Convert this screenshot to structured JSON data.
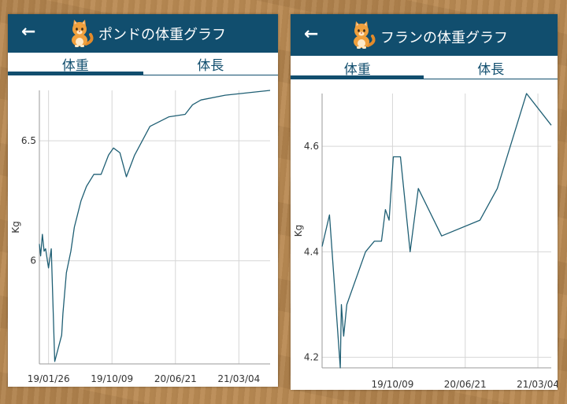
{
  "back_icon": "arrow-left-icon",
  "avatar_icon": "cat-icon",
  "accent_color": "#114e6e",
  "line_color": "#1f5f74",
  "panels": [
    {
      "header": {
        "back_glyph": "←",
        "title": "ポンドの体重グラフ"
      },
      "tabs": [
        {
          "label": "体重",
          "active": true
        },
        {
          "label": "体長",
          "active": false
        }
      ]
    },
    {
      "header": {
        "back_glyph": "←",
        "title": "フランの体重グラフ"
      },
      "tabs": [
        {
          "label": "体重",
          "active": true
        },
        {
          "label": "体長",
          "active": false
        }
      ]
    }
  ],
  "chart_data": [
    {
      "type": "line",
      "ylabel": "Kg",
      "ylim": [
        5.57,
        6.71
      ],
      "yticks": [
        6,
        6.5
      ],
      "xlim": [
        "2018-12-20",
        "2021-07-08"
      ],
      "x_ticks": [
        {
          "date": "2019-01-26",
          "label": "19/01/26"
        },
        {
          "date": "2019-10-09",
          "label": "19/10/09"
        },
        {
          "date": "2020-06-21",
          "label": "20/06/21"
        },
        {
          "date": "2021-03-04",
          "label": "21/03/04"
        }
      ],
      "grid": true,
      "series": [
        {
          "x": [
            "2018-12-20",
            "2018-12-25",
            "2019-01-01",
            "2019-01-08",
            "2019-01-14",
            "2019-01-26",
            "2019-02-06",
            "2019-02-20",
            "2019-03-20",
            "2019-03-25",
            "2019-04-08",
            "2019-04-26",
            "2019-05-10",
            "2019-05-20",
            "2019-06-06",
            "2019-06-28",
            "2019-07-28",
            "2019-08-26",
            "2019-09-25",
            "2019-10-15",
            "2019-11-10",
            "2019-12-06",
            "2020-01-08",
            "2020-03-10",
            "2020-05-26",
            "2020-07-30",
            "2020-08-29",
            "2020-10-02",
            "2021-01-08",
            "2021-07-08"
          ],
          "y": [
            6.07,
            6.02,
            6.11,
            6.04,
            6.05,
            5.97,
            6.05,
            5.58,
            5.69,
            5.78,
            5.95,
            6.04,
            6.14,
            6.18,
            6.25,
            6.31,
            6.36,
            6.36,
            6.44,
            6.47,
            6.45,
            6.35,
            6.44,
            6.56,
            6.6,
            6.61,
            6.65,
            6.67,
            6.69,
            6.71
          ]
        }
      ]
    },
    {
      "type": "line",
      "ylabel": "Kg",
      "ylim": [
        4.18,
        4.7
      ],
      "yticks": [
        4.2,
        4.4,
        4.6
      ],
      "xlim": [
        "2019-02-03",
        "2021-04-20"
      ],
      "x_ticks": [
        {
          "date": "2019-10-09",
          "label": "19/10/09"
        },
        {
          "date": "2020-06-21",
          "label": "20/06/21"
        },
        {
          "date": "2021-03-04",
          "label": "21/03/04"
        }
      ],
      "grid": true,
      "series": [
        {
          "x": [
            "2019-02-03",
            "2019-03-01",
            "2019-04-08",
            "2019-04-12",
            "2019-04-20",
            "2019-05-01",
            "2019-07-06",
            "2019-08-06",
            "2019-08-31",
            "2019-09-14",
            "2019-09-27",
            "2019-10-12",
            "2019-11-06",
            "2019-12-10",
            "2020-01-08",
            "2020-03-30",
            "2020-08-12",
            "2020-10-12",
            "2021-01-23",
            "2021-04-20"
          ],
          "y": [
            4.41,
            4.47,
            4.18,
            4.3,
            4.24,
            4.3,
            4.4,
            4.42,
            4.42,
            4.48,
            4.46,
            4.58,
            4.58,
            4.4,
            4.52,
            4.43,
            4.46,
            4.52,
            4.7,
            4.64
          ]
        }
      ]
    }
  ]
}
